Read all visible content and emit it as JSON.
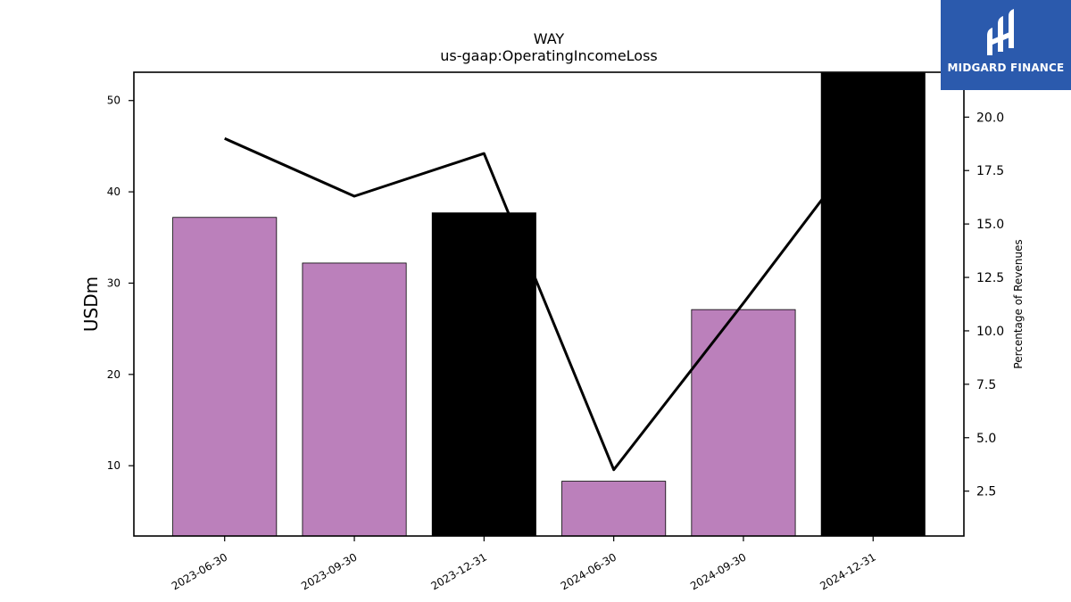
{
  "chart_data": {
    "type": "bar",
    "title": "WAY",
    "subtitle": "us-gaap:OperatingIncomeLoss",
    "categories": [
      "2023-06-30",
      "2023-09-30",
      "2023-12-31",
      "2024-06-30",
      "2024-09-30",
      "2024-12-31"
    ],
    "series": [
      {
        "values": [
          37.2,
          32.2,
          37.7,
          8.3,
          27.1,
          53.0
        ],
        "colors": [
          "#bb80bb",
          "#bb80bb",
          "#000000",
          "#bb80bb",
          "#bb80bb",
          "#000000"
        ]
      },
      {
        "type": "line",
        "axis": "right",
        "values": [
          19.0,
          16.3,
          18.3,
          3.5,
          11.3,
          19.3
        ],
        "color": "#000000"
      }
    ],
    "ylabel": "USDm",
    "y2label": "Percentage of Revenues",
    "ylim": [
      2.3,
      53.1
    ],
    "y2lim": [
      0.4,
      22.1
    ],
    "yticks": [
      10,
      20,
      30,
      40,
      50
    ],
    "y2ticks": [
      "2.5",
      "5.0",
      "7.5",
      "10.0",
      "12.5",
      "15.0",
      "17.5",
      "20.0"
    ],
    "grid": false
  },
  "logo": {
    "text": "MIDGARD FINANCE",
    "bg_color": "#2b5aad"
  }
}
